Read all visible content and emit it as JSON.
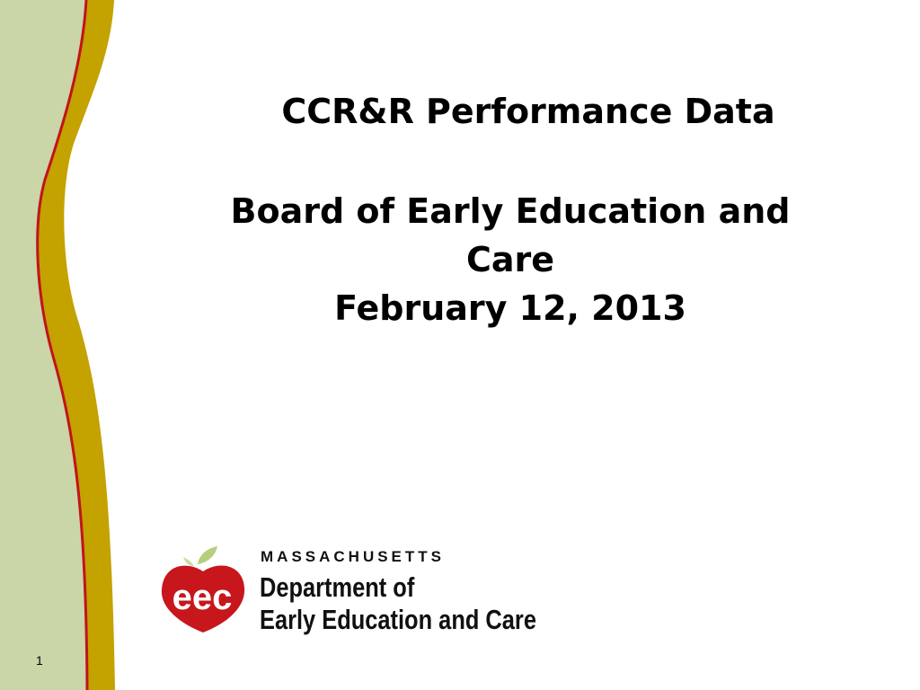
{
  "slide": {
    "title": "CCR&R Performance Data",
    "subtitle_line1": "Board of Early Education and",
    "subtitle_line2": "Care",
    "date": "February 12, 2013",
    "slide_number": "1"
  },
  "logo": {
    "mark_text": "eec",
    "line1": "MASSACHUSETTS",
    "line2": "Department of",
    "line3": "Early Education and Care"
  },
  "colors": {
    "sidebar_green": "#cad5a8",
    "band_gold": "#c4a200",
    "stripe_red": "#c0141a",
    "apple_red": "#c8161d"
  }
}
